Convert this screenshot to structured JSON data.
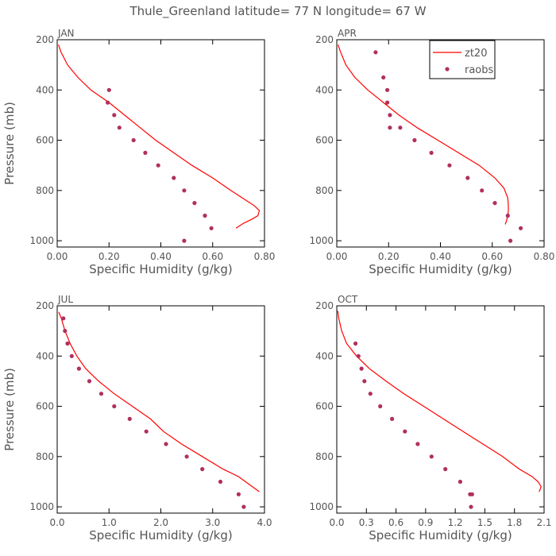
{
  "chart_data": {
    "title": "Thule_Greenland  latitude= 77 N longitude= 67 W",
    "legend": {
      "placement": "top-right of APR panel",
      "entries": [
        {
          "label": "zt20",
          "kind": "line",
          "color": "#ff0000"
        },
        {
          "label": "raobs",
          "kind": "marker",
          "color": "#b03060"
        }
      ]
    },
    "panels": [
      {
        "label": "JAN",
        "type": "line+scatter",
        "xlabel": "Specific Humidity (g/kg)",
        "ylabel": "Pressure (mb)",
        "xlim": [
          0,
          0.8
        ],
        "xticks": [
          0,
          0.2,
          0.4,
          0.6,
          0.8
        ],
        "xtick_labels": [
          "0.00",
          "0.20",
          "0.40",
          "0.60",
          "0.80"
        ],
        "ylim": [
          200,
          1025
        ],
        "yticks": [
          200,
          400,
          600,
          800,
          1000
        ],
        "ytick_labels": [
          "200",
          "400",
          "600",
          "800",
          "1000"
        ],
        "model": {
          "name": "zt20",
          "x": [
            0.005,
            0.015,
            0.04,
            0.08,
            0.13,
            0.2,
            0.26,
            0.32,
            0.38,
            0.45,
            0.52,
            0.6,
            0.67,
            0.73,
            0.76,
            0.78,
            0.775,
            0.75,
            0.72,
            0.69
          ],
          "y": [
            220,
            250,
            300,
            350,
            400,
            450,
            500,
            550,
            600,
            650,
            700,
            750,
            800,
            840,
            860,
            880,
            900,
            915,
            930,
            950
          ]
        },
        "obs": {
          "name": "raobs",
          "x": [
            0.2,
            0.195,
            0.22,
            0.24,
            0.295,
            0.34,
            0.39,
            0.45,
            0.49,
            0.53,
            0.57,
            0.595,
            0.49
          ],
          "y": [
            400,
            450,
            500,
            550,
            600,
            650,
            700,
            750,
            800,
            850,
            900,
            950,
            1000
          ]
        }
      },
      {
        "label": "APR",
        "type": "line+scatter",
        "xlabel": "Specific Humidity (g/kg)",
        "ylabel": "",
        "xlim": [
          0,
          0.8
        ],
        "xticks": [
          0,
          0.2,
          0.4,
          0.6,
          0.8
        ],
        "xtick_labels": [
          "0.00",
          "0.20",
          "0.40",
          "0.60",
          "0.80"
        ],
        "ylim": [
          200,
          1025
        ],
        "yticks": [
          200,
          400,
          600,
          800,
          1000
        ],
        "ytick_labels": [
          "200",
          "400",
          "600",
          "800",
          "1000"
        ],
        "model": {
          "name": "zt20",
          "x": [
            0.005,
            0.015,
            0.035,
            0.07,
            0.12,
            0.18,
            0.24,
            0.31,
            0.39,
            0.47,
            0.55,
            0.61,
            0.645,
            0.66,
            0.662,
            0.662,
            0.66,
            0.655,
            0.65
          ],
          "y": [
            220,
            250,
            300,
            350,
            400,
            450,
            500,
            550,
            600,
            650,
            700,
            750,
            790,
            830,
            860,
            880,
            900,
            920,
            935
          ]
        },
        "obs": {
          "name": "raobs",
          "x": [
            0.15,
            0.18,
            0.195,
            0.195,
            0.205,
            0.205,
            0.245,
            0.3,
            0.365,
            0.435,
            0.505,
            0.56,
            0.61,
            0.66,
            0.71,
            0.67
          ],
          "y": [
            250,
            350,
            400,
            450,
            500,
            550,
            550,
            600,
            650,
            700,
            750,
            800,
            850,
            900,
            950,
            1000
          ]
        }
      },
      {
        "label": "JUL",
        "type": "line+scatter",
        "xlabel": "Specific Humidity (g/kg)",
        "ylabel": "Pressure (mb)",
        "xlim": [
          0,
          4
        ],
        "xticks": [
          0,
          1,
          2,
          3,
          4
        ],
        "xtick_labels": [
          "0.0",
          "1.0",
          "2.0",
          "3.0",
          "4.0"
        ],
        "ylim": [
          200,
          1025
        ],
        "yticks": [
          200,
          400,
          600,
          800,
          1000
        ],
        "ytick_labels": [
          "200",
          "400",
          "600",
          "800",
          "1000"
        ],
        "model": {
          "name": "zt20",
          "x": [
            0.03,
            0.08,
            0.15,
            0.25,
            0.38,
            0.55,
            0.8,
            1.1,
            1.45,
            1.8,
            2.05,
            2.4,
            2.8,
            3.2,
            3.5,
            3.7,
            3.9
          ],
          "y": [
            225,
            250,
            300,
            350,
            400,
            450,
            500,
            550,
            600,
            650,
            700,
            750,
            800,
            850,
            880,
            910,
            940
          ]
        },
        "obs": {
          "name": "raobs",
          "x": [
            0.12,
            0.15,
            0.2,
            0.28,
            0.42,
            0.62,
            0.85,
            1.1,
            1.4,
            1.72,
            2.1,
            2.5,
            2.8,
            3.15,
            3.5,
            3.6
          ],
          "y": [
            250,
            300,
            350,
            400,
            450,
            500,
            550,
            600,
            650,
            700,
            750,
            800,
            850,
            900,
            950,
            1000
          ]
        }
      },
      {
        "label": "OCT",
        "type": "line+scatter",
        "xlabel": "Specific Humidity (g/kg)",
        "ylabel": "",
        "xlim": [
          0,
          2.1
        ],
        "xticks": [
          0,
          0.3,
          0.6,
          0.9,
          1.2,
          1.5,
          1.8,
          2.1
        ],
        "xtick_labels": [
          "0.0",
          "0.3",
          "0.6",
          "0.9",
          "1.2",
          "1.5",
          "1.8",
          "2.1"
        ],
        "ylim": [
          200,
          1025
        ],
        "yticks": [
          200,
          400,
          600,
          800,
          1000
        ],
        "ytick_labels": [
          "200",
          "400",
          "600",
          "800",
          "1000"
        ],
        "model": {
          "name": "zt20",
          "x": [
            0.01,
            0.02,
            0.05,
            0.1,
            0.2,
            0.33,
            0.5,
            0.68,
            0.88,
            1.08,
            1.28,
            1.48,
            1.68,
            1.85,
            1.98,
            2.04,
            2.07,
            2.05
          ],
          "y": [
            220,
            250,
            300,
            350,
            400,
            450,
            500,
            550,
            600,
            650,
            700,
            750,
            800,
            850,
            880,
            900,
            920,
            940
          ]
        },
        "obs": {
          "name": "raobs",
          "x": [
            0.19,
            0.22,
            0.25,
            0.28,
            0.34,
            0.44,
            0.56,
            0.69,
            0.82,
            0.96,
            1.1,
            1.25,
            1.35,
            1.37,
            1.36
          ],
          "y": [
            350,
            400,
            450,
            500,
            550,
            600,
            650,
            700,
            750,
            800,
            850,
            900,
            950,
            950,
            1000
          ]
        }
      }
    ]
  }
}
